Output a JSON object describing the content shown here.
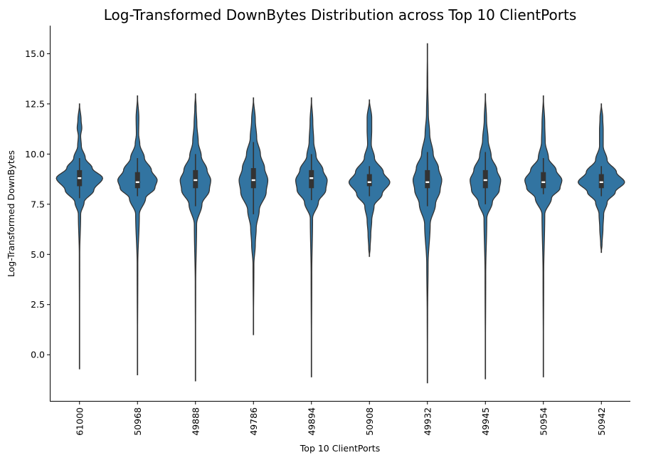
{
  "chart_data": {
    "type": "violin",
    "title": "Log-Transformed DownBytes Distribution across Top 10 ClientPorts",
    "xlabel": "Top 10 ClientPorts",
    "ylabel": "Log-Transformed DownBytes",
    "ylim": [
      -2.3,
      16.4
    ],
    "yticks": [
      "0.0",
      "2.5",
      "5.0",
      "7.5",
      "10.0",
      "12.5",
      "15.0"
    ],
    "grid": false,
    "legend": "none",
    "violin_color": "#3274a1",
    "edge_color": "#333333",
    "categories": [
      "61000",
      "50968",
      "49888",
      "49786",
      "49894",
      "50908",
      "49932",
      "49945",
      "50954",
      "50942"
    ],
    "series": [
      {
        "category": "61000",
        "min": -0.7,
        "max": 12.5,
        "q1": 8.4,
        "median": 8.8,
        "q3": 9.2,
        "whisker_low": 7.8,
        "whisker_high": 9.8,
        "density": [
          [
            -0.7,
            0.0
          ],
          [
            5.0,
            0.01
          ],
          [
            7.0,
            0.05
          ],
          [
            7.6,
            0.2
          ],
          [
            8.2,
            0.62
          ],
          [
            8.8,
            1.0
          ],
          [
            9.3,
            0.55
          ],
          [
            9.8,
            0.25
          ],
          [
            10.4,
            0.08
          ],
          [
            10.9,
            0.05
          ],
          [
            11.3,
            0.1
          ],
          [
            11.7,
            0.07
          ],
          [
            12.5,
            0.0
          ]
        ]
      },
      {
        "category": "50968",
        "min": -1.0,
        "max": 12.9,
        "q1": 8.3,
        "median": 8.6,
        "q3": 9.1,
        "whisker_low": 7.9,
        "whisker_high": 9.8,
        "density": [
          [
            -1.0,
            0.0
          ],
          [
            4.5,
            0.015
          ],
          [
            7.0,
            0.08
          ],
          [
            7.8,
            0.35
          ],
          [
            8.3,
            0.75
          ],
          [
            8.7,
            0.85
          ],
          [
            9.2,
            0.6
          ],
          [
            9.8,
            0.3
          ],
          [
            10.5,
            0.1
          ],
          [
            11.0,
            0.05
          ],
          [
            11.8,
            0.06
          ],
          [
            12.9,
            0.0
          ]
        ]
      },
      {
        "category": "49888",
        "min": -1.3,
        "max": 13.0,
        "q1": 8.3,
        "median": 8.7,
        "q3": 9.2,
        "whisker_low": 7.4,
        "whisker_high": 10.0,
        "density": [
          [
            -1.3,
            0.0
          ],
          [
            3.5,
            0.01
          ],
          [
            6.5,
            0.05
          ],
          [
            7.5,
            0.28
          ],
          [
            8.2,
            0.6
          ],
          [
            8.7,
            0.66
          ],
          [
            9.2,
            0.5
          ],
          [
            9.9,
            0.25
          ],
          [
            10.6,
            0.12
          ],
          [
            11.5,
            0.06
          ],
          [
            12.3,
            0.03
          ],
          [
            13.0,
            0.0
          ]
        ]
      },
      {
        "category": "49786",
        "min": 1.0,
        "max": 12.8,
        "q1": 8.3,
        "median": 8.7,
        "q3": 9.3,
        "whisker_low": 7.0,
        "whisker_high": 10.6,
        "density": [
          [
            1.0,
            0.0
          ],
          [
            4.5,
            0.02
          ],
          [
            5.5,
            0.08
          ],
          [
            6.3,
            0.12
          ],
          [
            7.2,
            0.25
          ],
          [
            8.1,
            0.55
          ],
          [
            8.7,
            0.62
          ],
          [
            9.3,
            0.48
          ],
          [
            10.0,
            0.3
          ],
          [
            10.8,
            0.14
          ],
          [
            11.7,
            0.08
          ],
          [
            12.8,
            0.0
          ]
        ]
      },
      {
        "category": "49894",
        "min": -1.1,
        "max": 12.8,
        "q1": 8.3,
        "median": 8.8,
        "q3": 9.2,
        "whisker_low": 7.7,
        "whisker_high": 10.0,
        "density": [
          [
            -1.1,
            0.0
          ],
          [
            4.0,
            0.015
          ],
          [
            6.8,
            0.05
          ],
          [
            7.6,
            0.3
          ],
          [
            8.2,
            0.62
          ],
          [
            8.7,
            0.68
          ],
          [
            9.2,
            0.5
          ],
          [
            9.9,
            0.2
          ],
          [
            10.6,
            0.1
          ],
          [
            11.6,
            0.06
          ],
          [
            12.8,
            0.0
          ]
        ]
      },
      {
        "category": "50908",
        "min": 4.9,
        "max": 12.7,
        "q1": 8.4,
        "median": 8.6,
        "q3": 9.0,
        "whisker_low": 7.9,
        "whisker_high": 9.4,
        "density": [
          [
            4.9,
            0.0
          ],
          [
            5.3,
            0.03
          ],
          [
            6.0,
            0.06
          ],
          [
            6.7,
            0.1
          ],
          [
            7.4,
            0.2
          ],
          [
            8.0,
            0.55
          ],
          [
            8.6,
            0.88
          ],
          [
            9.1,
            0.6
          ],
          [
            9.8,
            0.22
          ],
          [
            10.5,
            0.08
          ],
          [
            11.2,
            0.1
          ],
          [
            11.8,
            0.1
          ],
          [
            12.7,
            0.0
          ]
        ]
      },
      {
        "category": "49932",
        "min": -1.4,
        "max": 15.5,
        "q1": 8.3,
        "median": 8.6,
        "q3": 9.2,
        "whisker_low": 7.4,
        "whisker_high": 10.1,
        "density": [
          [
            -1.4,
            0.0
          ],
          [
            2.0,
            0.01
          ],
          [
            4.5,
            0.03
          ],
          [
            6.5,
            0.12
          ],
          [
            7.5,
            0.35
          ],
          [
            8.2,
            0.55
          ],
          [
            8.7,
            0.62
          ],
          [
            9.3,
            0.48
          ],
          [
            10.0,
            0.25
          ],
          [
            11.0,
            0.1
          ],
          [
            12.0,
            0.04
          ],
          [
            13.5,
            0.015
          ],
          [
            15.5,
            0.0
          ]
        ]
      },
      {
        "category": "49945",
        "min": -1.2,
        "max": 13.0,
        "q1": 8.3,
        "median": 8.7,
        "q3": 9.2,
        "whisker_low": 7.5,
        "whisker_high": 10.1,
        "density": [
          [
            -1.2,
            0.0
          ],
          [
            4.0,
            0.015
          ],
          [
            6.8,
            0.06
          ],
          [
            7.6,
            0.3
          ],
          [
            8.2,
            0.6
          ],
          [
            8.7,
            0.66
          ],
          [
            9.2,
            0.5
          ],
          [
            9.9,
            0.25
          ],
          [
            10.7,
            0.12
          ],
          [
            11.7,
            0.05
          ],
          [
            13.0,
            0.0
          ]
        ]
      },
      {
        "category": "50954",
        "min": -1.1,
        "max": 12.9,
        "q1": 8.3,
        "median": 8.6,
        "q3": 9.1,
        "whisker_low": 8.0,
        "whisker_high": 9.8,
        "density": [
          [
            -1.1,
            0.0
          ],
          [
            4.0,
            0.015
          ],
          [
            7.0,
            0.06
          ],
          [
            7.8,
            0.35
          ],
          [
            8.3,
            0.72
          ],
          [
            8.7,
            0.8
          ],
          [
            9.2,
            0.55
          ],
          [
            9.8,
            0.22
          ],
          [
            10.6,
            0.08
          ],
          [
            11.5,
            0.06
          ],
          [
            12.9,
            0.0
          ]
        ]
      },
      {
        "category": "50942",
        "min": 5.1,
        "max": 12.5,
        "q1": 8.3,
        "median": 8.6,
        "q3": 9.0,
        "whisker_low": 7.9,
        "whisker_high": 9.4,
        "density": [
          [
            5.1,
            0.0
          ],
          [
            5.5,
            0.03
          ],
          [
            6.3,
            0.07
          ],
          [
            7.0,
            0.1
          ],
          [
            7.6,
            0.25
          ],
          [
            8.1,
            0.6
          ],
          [
            8.6,
            1.0
          ],
          [
            9.1,
            0.65
          ],
          [
            9.7,
            0.25
          ],
          [
            10.4,
            0.08
          ],
          [
            11.2,
            0.08
          ],
          [
            11.8,
            0.06
          ],
          [
            12.5,
            0.0
          ]
        ]
      }
    ]
  }
}
